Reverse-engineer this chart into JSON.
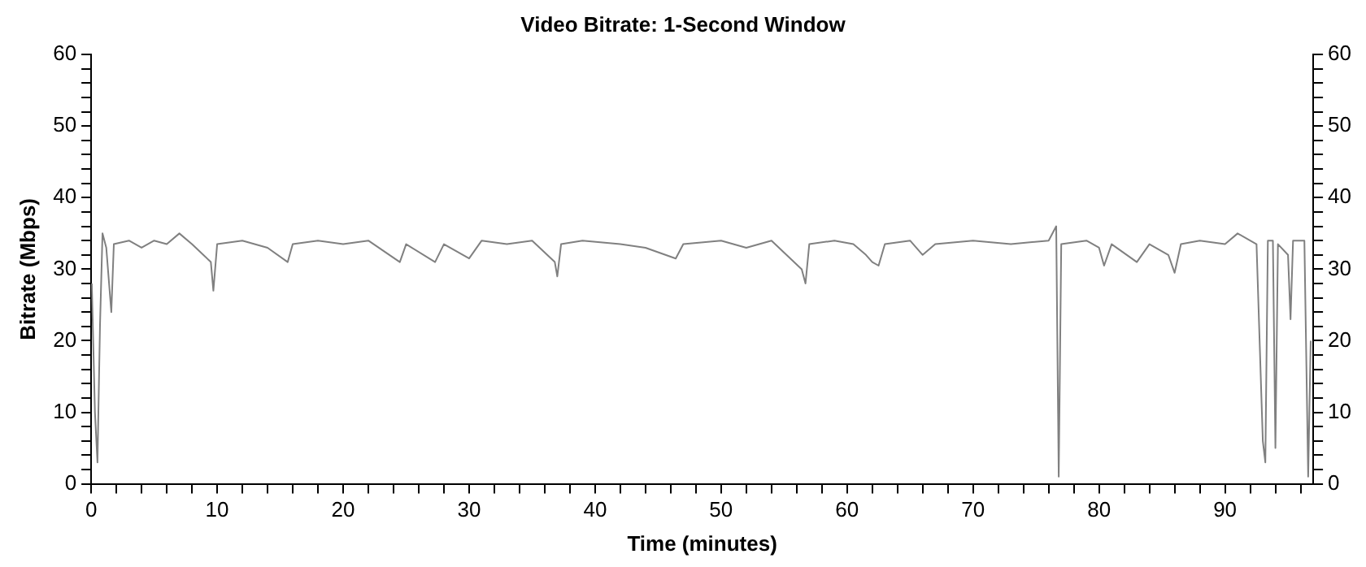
{
  "chart_data": {
    "type": "line",
    "title": "Video Bitrate: 1-Second Window",
    "xlabel": "Time (minutes)",
    "ylabel": "Bitrate (Mbps)",
    "xlim": [
      0,
      97
    ],
    "xticks": [
      0,
      {
        "value": 2,
        "label": null
      },
      {
        "value": 4,
        "label": null
      },
      {
        "value": 6,
        "label": null
      },
      {
        "value": 8,
        "label": null
      },
      10,
      {
        "value": 12,
        "label": null
      },
      {
        "value": 14,
        "label": null
      },
      {
        "value": 16,
        "label": null
      },
      {
        "value": 18,
        "label": null
      },
      20,
      {
        "value": 22,
        "label": null
      },
      {
        "value": 24,
        "label": null
      },
      {
        "value": 26,
        "label": null
      },
      {
        "value": 28,
        "label": null
      },
      30,
      {
        "value": 32,
        "label": null
      },
      {
        "value": 34,
        "label": null
      },
      {
        "value": 36,
        "label": null
      },
      {
        "value": 38,
        "label": null
      },
      40,
      {
        "value": 42,
        "label": null
      },
      {
        "value": 44,
        "label": null
      },
      {
        "value": 46,
        "label": null
      },
      {
        "value": 48,
        "label": null
      },
      50,
      {
        "value": 52,
        "label": null
      },
      {
        "value": 54,
        "label": null
      },
      {
        "value": 56,
        "label": null
      },
      {
        "value": 58,
        "label": null
      },
      60,
      {
        "value": 62,
        "label": null
      },
      {
        "value": 64,
        "label": null
      },
      {
        "value": 66,
        "label": null
      },
      {
        "value": 68,
        "label": null
      },
      70,
      {
        "value": 72,
        "label": null
      },
      {
        "value": 74,
        "label": null
      },
      {
        "value": 76,
        "label": null
      },
      {
        "value": 78,
        "label": null
      },
      80,
      {
        "value": 82,
        "label": null
      },
      {
        "value": 84,
        "label": null
      },
      {
        "value": 86,
        "label": null
      },
      {
        "value": 88,
        "label": null
      },
      90,
      {
        "value": 92,
        "label": null
      },
      {
        "value": 94,
        "label": null
      },
      {
        "value": 96,
        "label": null
      }
    ],
    "ylim": [
      0,
      60
    ],
    "yticks": [
      0,
      {
        "value": 2,
        "label": null
      },
      {
        "value": 4,
        "label": null
      },
      {
        "value": 6,
        "label": null
      },
      {
        "value": 8,
        "label": null
      },
      10,
      {
        "value": 12,
        "label": null
      },
      {
        "value": 14,
        "label": null
      },
      {
        "value": 16,
        "label": null
      },
      {
        "value": 18,
        "label": null
      },
      20,
      {
        "value": 22,
        "label": null
      },
      {
        "value": 24,
        "label": null
      },
      {
        "value": 26,
        "label": null
      },
      {
        "value": 28,
        "label": null
      },
      30,
      {
        "value": 32,
        "label": null
      },
      {
        "value": 34,
        "label": null
      },
      {
        "value": 36,
        "label": null
      },
      {
        "value": 38,
        "label": null
      },
      40,
      {
        "value": 42,
        "label": null
      },
      {
        "value": 44,
        "label": null
      },
      {
        "value": 46,
        "label": null
      },
      {
        "value": 48,
        "label": null
      },
      50,
      {
        "value": 52,
        "label": null
      },
      {
        "value": 54,
        "label": null
      },
      {
        "value": 56,
        "label": null
      },
      {
        "value": 58,
        "label": null
      },
      60
    ],
    "y2lim": [
      0,
      60
    ],
    "y2ticks": [
      0,
      {
        "value": 2,
        "label": null
      },
      {
        "value": 4,
        "label": null
      },
      {
        "value": 6,
        "label": null
      },
      {
        "value": 8,
        "label": null
      },
      10,
      {
        "value": 12,
        "label": null
      },
      {
        "value": 14,
        "label": null
      },
      {
        "value": 16,
        "label": null
      },
      {
        "value": 18,
        "label": null
      },
      20,
      {
        "value": 22,
        "label": null
      },
      {
        "value": 24,
        "label": null
      },
      {
        "value": 26,
        "label": null
      },
      {
        "value": 28,
        "label": null
      },
      30,
      {
        "value": 32,
        "label": null
      },
      {
        "value": 34,
        "label": null
      },
      {
        "value": 36,
        "label": null
      },
      {
        "value": 38,
        "label": null
      },
      40,
      {
        "value": 42,
        "label": null
      },
      {
        "value": 44,
        "label": null
      },
      {
        "value": 46,
        "label": null
      },
      {
        "value": 48,
        "label": null
      },
      50,
      {
        "value": 52,
        "label": null
      },
      {
        "value": 54,
        "label": null
      },
      {
        "value": 56,
        "label": null
      },
      {
        "value": 58,
        "label": null
      },
      60
    ],
    "grid": false,
    "legend": false,
    "marker": "none",
    "line_style": "solid",
    "series": [
      {
        "color": "#808080",
        "x": [
          0.05,
          0.3,
          0.5,
          0.7,
          0.9,
          1.2,
          1.6,
          1.8,
          3,
          4,
          5,
          6,
          7,
          8,
          9.5,
          9.7,
          10,
          12,
          14,
          15.6,
          16,
          18,
          20,
          22,
          24.5,
          25,
          27.3,
          28,
          30,
          31,
          33,
          35,
          36.8,
          37,
          37.3,
          39,
          42,
          44,
          46.4,
          47,
          50,
          52,
          54,
          56.4,
          56.7,
          57,
          59,
          60.5,
          61.5,
          62,
          62.5,
          63,
          65,
          66,
          67,
          70,
          73,
          76,
          76.6,
          76.8,
          77,
          79,
          80,
          80.4,
          81,
          83,
          84,
          85.5,
          86,
          86.5,
          88,
          90,
          91,
          92.5,
          93,
          93.2,
          93.4,
          93.8,
          94,
          94.2,
          95,
          95.2,
          95.4,
          96.3,
          96.6,
          96.8
        ],
        "values": [
          28,
          10,
          3,
          22,
          35,
          33,
          24,
          33.5,
          34,
          33,
          34,
          33.5,
          35,
          33.5,
          31,
          27,
          33.5,
          34,
          33,
          31,
          33.5,
          34,
          33.5,
          34,
          31,
          33.5,
          31,
          33.5,
          31.5,
          34,
          33.5,
          34,
          31,
          29,
          33.5,
          34,
          33.5,
          33,
          31.5,
          33.5,
          34,
          33,
          34,
          30,
          28,
          33.5,
          34,
          33.5,
          32,
          31,
          30.5,
          33.5,
          34,
          32,
          33.5,
          34,
          33.5,
          34,
          36,
          1,
          33.5,
          34,
          33,
          30.5,
          33.5,
          31,
          33.5,
          32,
          29.5,
          33.5,
          34,
          33.5,
          35,
          33.5,
          6,
          3,
          34,
          34,
          5,
          33.5,
          32,
          23,
          34,
          34,
          1,
          20
        ]
      }
    ]
  }
}
